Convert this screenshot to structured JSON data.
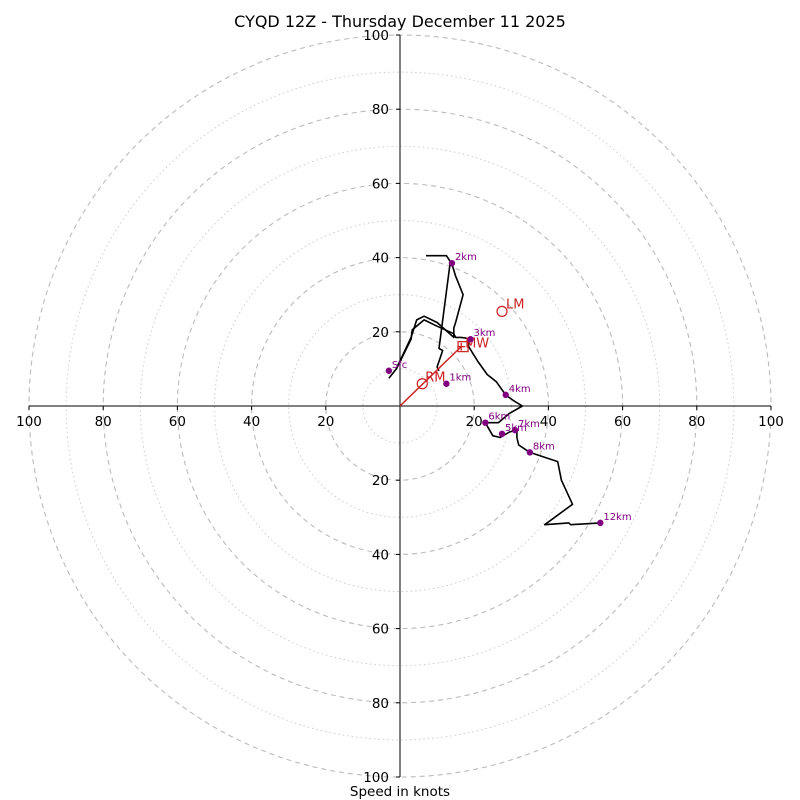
{
  "chart_data": {
    "type": "hodograph",
    "title": "CYQD 12Z - Thursday December 11 2025",
    "xlabel": "Speed in knots",
    "xlim": [
      -100,
      100
    ],
    "ylim": [
      -100,
      100
    ],
    "ring_major": [
      20,
      40,
      60,
      80,
      100
    ],
    "ring_minor": [
      10,
      30,
      50,
      70,
      90
    ],
    "x_ticks": [
      {
        "value": -100,
        "label": "100"
      },
      {
        "value": -80,
        "label": "80"
      },
      {
        "value": -60,
        "label": "60"
      },
      {
        "value": -40,
        "label": "40"
      },
      {
        "value": -20,
        "label": "20"
      },
      {
        "value": 20,
        "label": "20"
      },
      {
        "value": 40,
        "label": "40"
      },
      {
        "value": 60,
        "label": "60"
      },
      {
        "value": 80,
        "label": "80"
      },
      {
        "value": 100,
        "label": "100"
      }
    ],
    "y_ticks": [
      {
        "value": 100,
        "label": "100"
      },
      {
        "value": 80,
        "label": "80"
      },
      {
        "value": 60,
        "label": "60"
      },
      {
        "value": 40,
        "label": "40"
      },
      {
        "value": 20,
        "label": "20"
      },
      {
        "value": -20,
        "label": "20"
      },
      {
        "value": -40,
        "label": "40"
      },
      {
        "value": -60,
        "label": "60"
      },
      {
        "value": -80,
        "label": "80"
      },
      {
        "value": -100,
        "label": "100"
      }
    ],
    "trace": [
      [
        -3,
        7.5
      ],
      [
        -1,
        10
      ],
      [
        1,
        14
      ],
      [
        3,
        18
      ],
      [
        3.3,
        20.5
      ],
      [
        6.5,
        23.2
      ],
      [
        10,
        21.5
      ],
      [
        14.5,
        19.5
      ],
      [
        15,
        18.5
      ],
      [
        16.5,
        18.5
      ],
      [
        18.5,
        18.2
      ],
      [
        18.5,
        16
      ],
      [
        21,
        12
      ],
      [
        23.5,
        8.5
      ],
      [
        26,
        6.5
      ],
      [
        28.5,
        3
      ],
      [
        30.5,
        1.5
      ],
      [
        33,
        0
      ],
      [
        29.5,
        -2
      ],
      [
        26.5,
        -4.5
      ],
      [
        23,
        -4.5
      ],
      [
        25,
        -8
      ],
      [
        27,
        -8.5
      ],
      [
        29.5,
        -7
      ],
      [
        31.5,
        -6.5
      ],
      [
        31.5,
        -8.5
      ],
      [
        32,
        -10.5
      ],
      [
        35,
        -12.5
      ],
      [
        42.5,
        -15
      ],
      [
        43.5,
        -20
      ],
      [
        46.5,
        -26.5
      ],
      [
        39,
        -32
      ],
      [
        45.5,
        -31.5
      ],
      [
        46,
        -32
      ],
      [
        54,
        -31.5
      ]
    ],
    "trace_upper": [
      [
        -1,
        10
      ],
      [
        3,
        18.5
      ],
      [
        4.5,
        23.2
      ],
      [
        6.5,
        24.2
      ],
      [
        10,
        22.5
      ],
      [
        14.5,
        18.5
      ],
      [
        14.5,
        21
      ],
      [
        15,
        22.5
      ],
      [
        17,
        30
      ],
      [
        15,
        35
      ],
      [
        14,
        38.3
      ],
      [
        12.5,
        40.5
      ],
      [
        8,
        40.5
      ],
      [
        7,
        40.5
      ]
    ],
    "trace_mid": [
      [
        10.5,
        9.5
      ],
      [
        10,
        10.5
      ],
      [
        11.5,
        15
      ],
      [
        10.5,
        15.5
      ],
      [
        13.5,
        38.5
      ]
    ],
    "height_markers": [
      {
        "label": "Sfc",
        "u": -3,
        "v": 9.5
      },
      {
        "label": "1km",
        "u": 12.5,
        "v": 6
      },
      {
        "label": "2km",
        "u": 14,
        "v": 38.5
      },
      {
        "label": "3km",
        "u": 19,
        "v": 18
      },
      {
        "label": "4km",
        "u": 28.5,
        "v": 3
      },
      {
        "label": "6km",
        "u": 23,
        "v": -4.5
      },
      {
        "label": "5km",
        "u": 27.5,
        "v": -7.5
      },
      {
        "label": "7km",
        "u": 31,
        "v": -6.5
      },
      {
        "label": "8km",
        "u": 35,
        "v": -12.5
      },
      {
        "label": "12km",
        "u": 54,
        "v": -31.5
      }
    ],
    "storm_motion": {
      "right_mover": {
        "label": "RM",
        "u": 6,
        "v": 6
      },
      "left_mover": {
        "label": "LM",
        "u": 27.5,
        "v": 25.5
      },
      "mean_wind": {
        "label": "MW",
        "u": 17,
        "v": 16
      }
    },
    "shear_vector": {
      "u0": 0,
      "v0": 0,
      "u1": 16.5,
      "v1": 16
    },
    "colors": {
      "trace": "#000000",
      "marker": "#800080",
      "storm": "#cc2222",
      "ring": "#bbbbbb",
      "axis": "#000000"
    }
  }
}
